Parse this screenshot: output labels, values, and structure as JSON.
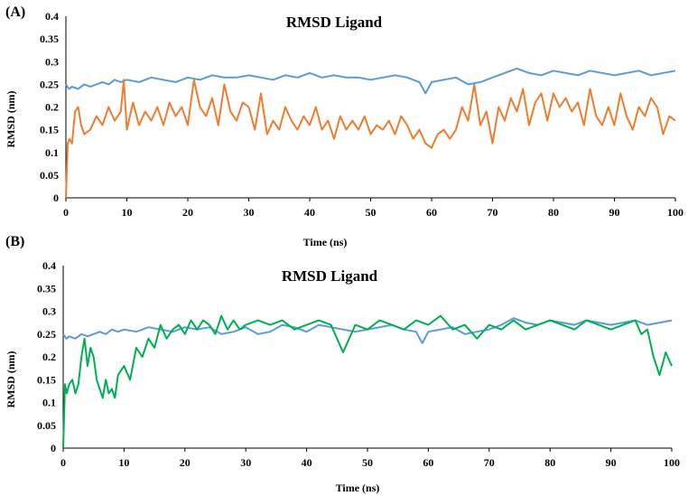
{
  "figure": {
    "title": "RMSD Ligand vs time"
  },
  "chart_data": [
    {
      "type": "line",
      "panel_label": "(A)",
      "title": "RMSD Ligand",
      "xlabel": "Time (ns)",
      "ylabel": "RMSD (nm)",
      "xlim": [
        0,
        100
      ],
      "ylim": [
        0,
        0.4
      ],
      "xticks": [
        "0",
        "10",
        "20",
        "30",
        "40",
        "50",
        "60",
        "70",
        "80",
        "90",
        "100"
      ],
      "yticks": [
        "0",
        "0.05",
        "0.1",
        "0.15",
        "0.2",
        "0.25",
        "0.3",
        "0.35",
        "0.4"
      ],
      "grid": false,
      "series": [
        {
          "name": "series-blue",
          "color": "#5B9BD5",
          "x": [
            0,
            0.5,
            1,
            2,
            3,
            4,
            5,
            6,
            7,
            8,
            9,
            10,
            12,
            14,
            16,
            18,
            20,
            22,
            24,
            26,
            28,
            30,
            32,
            34,
            36,
            38,
            40,
            42,
            44,
            46,
            48,
            50,
            52,
            54,
            56,
            58,
            59,
            60,
            62,
            64,
            66,
            68,
            70,
            72,
            74,
            76,
            78,
            80,
            82,
            84,
            86,
            88,
            90,
            92,
            94,
            96,
            98,
            100
          ],
          "y": [
            0.25,
            0.24,
            0.245,
            0.24,
            0.25,
            0.245,
            0.25,
            0.255,
            0.25,
            0.26,
            0.255,
            0.26,
            0.255,
            0.265,
            0.26,
            0.255,
            0.265,
            0.26,
            0.27,
            0.265,
            0.265,
            0.27,
            0.265,
            0.26,
            0.27,
            0.265,
            0.275,
            0.265,
            0.27,
            0.265,
            0.265,
            0.26,
            0.265,
            0.27,
            0.265,
            0.255,
            0.23,
            0.255,
            0.26,
            0.265,
            0.25,
            0.255,
            0.265,
            0.275,
            0.285,
            0.275,
            0.27,
            0.28,
            0.275,
            0.27,
            0.28,
            0.275,
            0.27,
            0.275,
            0.28,
            0.27,
            0.275,
            0.28
          ]
        },
        {
          "name": "series-orange",
          "color": "#ED7D31",
          "x": [
            0,
            0.3,
            0.6,
            1,
            1.5,
            2,
            2.5,
            3,
            4,
            5,
            6,
            7,
            8,
            9,
            9.5,
            10,
            11,
            12,
            13,
            14,
            15,
            16,
            17,
            18,
            19,
            20,
            21,
            22,
            23,
            24,
            25,
            26,
            27,
            28,
            29,
            30,
            31,
            32,
            33,
            34,
            35,
            36,
            37,
            38,
            39,
            40,
            41,
            42,
            43,
            44,
            45,
            46,
            47,
            48,
            49,
            50,
            51,
            52,
            53,
            54,
            55,
            56,
            57,
            58,
            59,
            60,
            61,
            62,
            63,
            64,
            65,
            66,
            67,
            68,
            69,
            70,
            71,
            72,
            73,
            74,
            75,
            76,
            77,
            78,
            79,
            80,
            81,
            82,
            83,
            84,
            85,
            86,
            87,
            88,
            89,
            90,
            91,
            92,
            93,
            94,
            95,
            96,
            97,
            98,
            99,
            100
          ],
          "y": [
            0.0,
            0.12,
            0.13,
            0.12,
            0.19,
            0.2,
            0.16,
            0.14,
            0.15,
            0.18,
            0.16,
            0.2,
            0.17,
            0.19,
            0.26,
            0.15,
            0.21,
            0.16,
            0.19,
            0.17,
            0.2,
            0.16,
            0.21,
            0.18,
            0.2,
            0.16,
            0.26,
            0.2,
            0.18,
            0.22,
            0.16,
            0.25,
            0.19,
            0.17,
            0.21,
            0.2,
            0.15,
            0.23,
            0.14,
            0.17,
            0.15,
            0.2,
            0.17,
            0.15,
            0.18,
            0.16,
            0.2,
            0.15,
            0.17,
            0.13,
            0.18,
            0.15,
            0.17,
            0.15,
            0.18,
            0.14,
            0.16,
            0.15,
            0.17,
            0.14,
            0.18,
            0.16,
            0.13,
            0.15,
            0.12,
            0.11,
            0.14,
            0.15,
            0.13,
            0.15,
            0.2,
            0.17,
            0.25,
            0.16,
            0.19,
            0.12,
            0.2,
            0.17,
            0.22,
            0.19,
            0.24,
            0.16,
            0.21,
            0.23,
            0.17,
            0.23,
            0.2,
            0.22,
            0.19,
            0.21,
            0.16,
            0.24,
            0.18,
            0.16,
            0.2,
            0.16,
            0.23,
            0.18,
            0.15,
            0.2,
            0.18,
            0.22,
            0.2,
            0.14,
            0.18,
            0.17
          ]
        }
      ]
    },
    {
      "type": "line",
      "panel_label": "(B)",
      "title": "RMSD Ligand",
      "xlabel": "Time (ns)",
      "ylabel": "RMSD (nm)",
      "xlim": [
        0,
        100
      ],
      "ylim": [
        0,
        0.4
      ],
      "xticks": [
        "0",
        "10",
        "20",
        "30",
        "40",
        "50",
        "60",
        "70",
        "80",
        "90",
        "100"
      ],
      "yticks": [
        "0",
        "0.05",
        "0.1",
        "0.15",
        "0.2",
        "0.25",
        "0.3",
        "0.35",
        "0.4"
      ],
      "grid": false,
      "series": [
        {
          "name": "series-blue",
          "color": "#5B9BD5",
          "x": [
            0,
            0.5,
            1,
            2,
            3,
            4,
            5,
            6,
            7,
            8,
            9,
            10,
            12,
            14,
            16,
            18,
            20,
            22,
            24,
            26,
            28,
            30,
            32,
            34,
            36,
            38,
            40,
            42,
            44,
            46,
            48,
            50,
            52,
            54,
            56,
            58,
            59,
            60,
            62,
            64,
            66,
            68,
            70,
            72,
            74,
            76,
            78,
            80,
            82,
            84,
            86,
            88,
            90,
            92,
            94,
            96,
            98,
            100
          ],
          "y": [
            0.25,
            0.24,
            0.245,
            0.24,
            0.25,
            0.245,
            0.25,
            0.255,
            0.25,
            0.26,
            0.255,
            0.26,
            0.255,
            0.265,
            0.26,
            0.255,
            0.265,
            0.26,
            0.265,
            0.25,
            0.255,
            0.265,
            0.25,
            0.255,
            0.27,
            0.265,
            0.255,
            0.27,
            0.265,
            0.26,
            0.255,
            0.26,
            0.265,
            0.27,
            0.26,
            0.255,
            0.23,
            0.255,
            0.26,
            0.265,
            0.25,
            0.255,
            0.26,
            0.27,
            0.285,
            0.275,
            0.27,
            0.28,
            0.275,
            0.27,
            0.28,
            0.275,
            0.27,
            0.275,
            0.28,
            0.27,
            0.275,
            0.28
          ]
        },
        {
          "name": "series-green",
          "color": "#00B050",
          "x": [
            0,
            0.3,
            0.6,
            1,
            1.5,
            2,
            2.5,
            3,
            3.5,
            4,
            4.5,
            5,
            5.5,
            6,
            6.5,
            7,
            7.5,
            8,
            8.5,
            9,
            10,
            11,
            12,
            13,
            14,
            15,
            16,
            17,
            18,
            19,
            20,
            21,
            22,
            23,
            24,
            25,
            26,
            27,
            28,
            29,
            30,
            32,
            34,
            36,
            38,
            40,
            42,
            44,
            46,
            48,
            50,
            52,
            54,
            56,
            58,
            60,
            62,
            64,
            66,
            68,
            70,
            72,
            74,
            76,
            78,
            80,
            82,
            84,
            86,
            88,
            90,
            92,
            94,
            95,
            96,
            97,
            98,
            99,
            100
          ],
          "y": [
            0.0,
            0.14,
            0.12,
            0.14,
            0.15,
            0.12,
            0.14,
            0.2,
            0.24,
            0.18,
            0.22,
            0.2,
            0.15,
            0.13,
            0.11,
            0.15,
            0.12,
            0.13,
            0.11,
            0.16,
            0.18,
            0.15,
            0.22,
            0.2,
            0.24,
            0.22,
            0.27,
            0.24,
            0.26,
            0.27,
            0.25,
            0.28,
            0.26,
            0.28,
            0.27,
            0.25,
            0.29,
            0.26,
            0.28,
            0.26,
            0.27,
            0.28,
            0.27,
            0.28,
            0.26,
            0.27,
            0.28,
            0.27,
            0.21,
            0.27,
            0.26,
            0.28,
            0.27,
            0.26,
            0.28,
            0.27,
            0.29,
            0.26,
            0.27,
            0.24,
            0.27,
            0.26,
            0.28,
            0.26,
            0.27,
            0.28,
            0.27,
            0.26,
            0.28,
            0.27,
            0.26,
            0.27,
            0.28,
            0.25,
            0.26,
            0.2,
            0.16,
            0.21,
            0.18
          ]
        }
      ]
    }
  ]
}
